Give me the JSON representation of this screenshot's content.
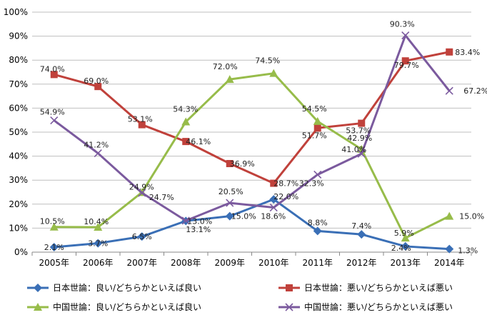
{
  "chart_data": {
    "type": "line",
    "categories": [
      "2005年",
      "2006年",
      "2007年",
      "2008年",
      "2009年",
      "2010年",
      "2011年",
      "2012年",
      "2013年",
      "2014年"
    ],
    "ylim": [
      0,
      100
    ],
    "yticks": [
      "0%",
      "10%",
      "20%",
      "30%",
      "40%",
      "50%",
      "60%",
      "70%",
      "80%",
      "90%",
      "100%"
    ],
    "grid": true,
    "legend_position": "bottom",
    "series": [
      {
        "name": "日本世論：良い/どちらかといえば良い",
        "color": "#3A6FB6",
        "marker": "diamond",
        "values": [
          2.1,
          3.7,
          6.5,
          13.0,
          15.0,
          22.0,
          8.8,
          7.4,
          2.4,
          1.3
        ],
        "labels": [
          "2.1%",
          "3.7%",
          "6.5%",
          "13.0%",
          "15.0%",
          "22.0%",
          "8.8%",
          "7.4%",
          "2.4%",
          "1.3%"
        ]
      },
      {
        "name": "日本世論：悪い/どちらかといえば悪い",
        "color": "#C0413B",
        "marker": "square",
        "values": [
          74.0,
          69.0,
          53.1,
          46.1,
          36.9,
          28.7,
          51.7,
          53.7,
          79.7,
          83.4
        ],
        "labels": [
          "74.0%",
          "69.0%",
          "53.1%",
          "46.1%",
          "36.9%",
          "28.7%",
          "51.7%",
          "53.7%",
          "79.7%",
          "83.4%"
        ]
      },
      {
        "name": "中国世論：良い/どちらかといえば良い",
        "color": "#97BC4A",
        "marker": "triangle",
        "values": [
          10.5,
          10.4,
          24.9,
          54.3,
          72.0,
          74.5,
          54.5,
          42.9,
          5.9,
          15.0
        ],
        "labels": [
          "10.5%",
          "10.4%",
          "24.9%",
          "54.3%",
          "72.0%",
          "74.5%",
          "54.5%",
          "42.9%",
          "5.9%",
          "15.0%"
        ]
      },
      {
        "name": "中国世論：悪い/どちらかといえば悪い",
        "color": "#7B5A9E",
        "marker": "x",
        "values": [
          54.9,
          41.2,
          24.7,
          13.1,
          20.5,
          18.6,
          32.3,
          41.0,
          90.3,
          67.2
        ],
        "labels": [
          "54.9%",
          "41.2%",
          "24.7%",
          "13.1%",
          "20.5%",
          "18.6%",
          "32.3%",
          "41.0%",
          "90.3%",
          "67.2%"
        ]
      }
    ]
  }
}
